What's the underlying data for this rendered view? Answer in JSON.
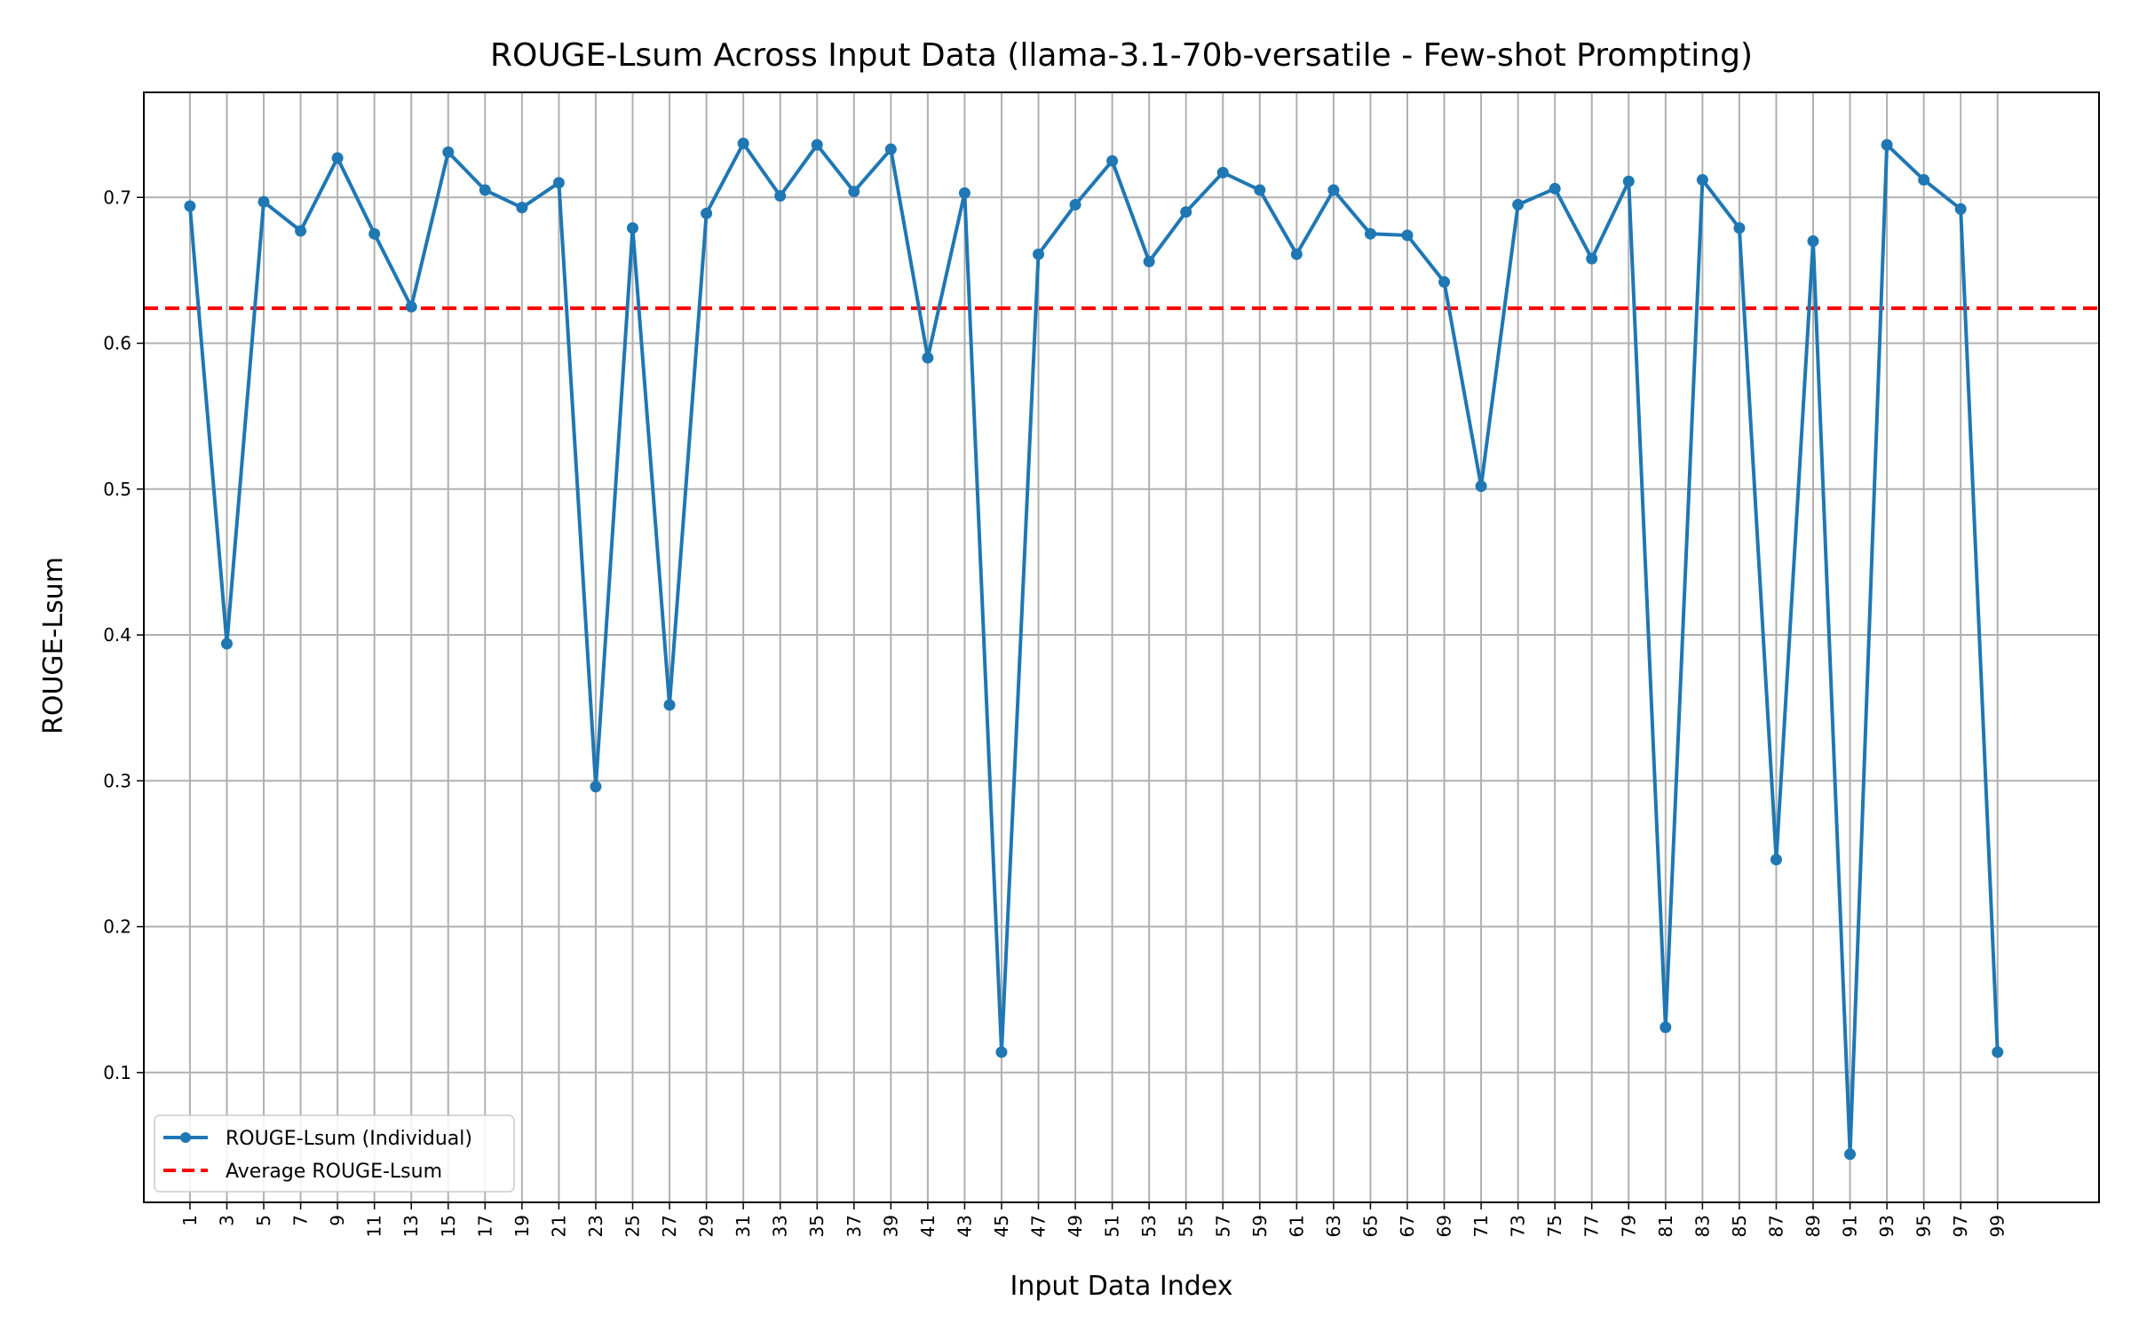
{
  "chart_data": {
    "type": "line",
    "title": "ROUGE-Lsum Across Input Data (llama-3.1-70b-versatile - Few-shot Prompting)",
    "xlabel": "Input Data Index",
    "ylabel": "ROUGE-Lsum",
    "xlim": [
      -1.5,
      104.5
    ],
    "ylim": [
      0.011,
      0.772
    ],
    "grid": true,
    "legend_position": "lower-left",
    "x": [
      1,
      3,
      5,
      7,
      9,
      11,
      13,
      15,
      17,
      19,
      21,
      23,
      25,
      27,
      29,
      31,
      33,
      35,
      37,
      39,
      41,
      43,
      45,
      47,
      49,
      51,
      53,
      55,
      57,
      59,
      61,
      63,
      65,
      67,
      69,
      71,
      73,
      75,
      77,
      79,
      81,
      83,
      85,
      87,
      89,
      91,
      93,
      95,
      97,
      99
    ],
    "x_tick_labels": [
      "1",
      "3",
      "5",
      "7",
      "9",
      "11",
      "13",
      "15",
      "17",
      "19",
      "21",
      "23",
      "25",
      "27",
      "29",
      "31",
      "33",
      "35",
      "37",
      "39",
      "41",
      "43",
      "45",
      "47",
      "49",
      "51",
      "53",
      "55",
      "57",
      "59",
      "61",
      "63",
      "65",
      "67",
      "69",
      "71",
      "73",
      "75",
      "77",
      "79",
      "81",
      "83",
      "85",
      "87",
      "89",
      "91",
      "93",
      "95",
      "97",
      "99"
    ],
    "y_ticks": [
      0.1,
      0.2,
      0.3,
      0.4,
      0.5,
      0.6,
      0.7
    ],
    "y_tick_labels": [
      "0.1",
      "0.2",
      "0.3",
      "0.4",
      "0.5",
      "0.6",
      "0.7"
    ],
    "series": [
      {
        "name": "ROUGE-Lsum (Individual)",
        "color": "#1f77b4",
        "style": "solid-with-markers",
        "values": [
          0.694,
          0.394,
          0.697,
          0.677,
          0.727,
          0.675,
          0.625,
          0.731,
          0.705,
          0.693,
          0.71,
          0.296,
          0.679,
          0.352,
          0.689,
          0.737,
          0.701,
          0.736,
          0.704,
          0.733,
          0.59,
          0.703,
          0.114,
          0.661,
          0.695,
          0.725,
          0.656,
          0.69,
          0.717,
          0.705,
          0.661,
          0.705,
          0.675,
          0.674,
          0.642,
          0.502,
          0.695,
          0.706,
          0.658,
          0.711,
          0.131,
          0.712,
          0.679,
          0.246,
          0.67,
          0.044,
          0.736,
          0.712,
          0.692,
          0.114
        ]
      },
      {
        "name": "Average ROUGE-Lsum",
        "color": "#ff0000",
        "style": "dashed",
        "value": 0.624
      }
    ]
  }
}
